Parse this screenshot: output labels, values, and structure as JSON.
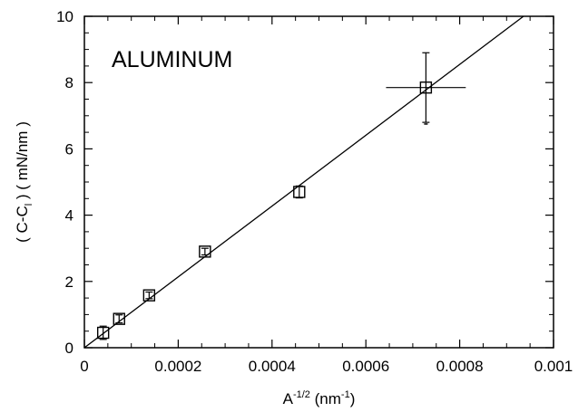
{
  "chart_data": {
    "type": "scatter",
    "title": "",
    "annotation": "ALUMINUM",
    "xlabel": {
      "base": "A",
      "sup": "-1/2",
      "unit_open": " (nm",
      "unit_sup": "-1",
      "unit_close": ")"
    },
    "ylabel": {
      "open": "( C-C",
      "sub": "l",
      "close": " )  ( mN/nm )"
    },
    "xlim": [
      0,
      0.001
    ],
    "ylim": [
      0,
      10
    ],
    "xticks": [
      "0",
      "0.0002",
      "0.0004",
      "0.0006",
      "0.0008",
      "0.001"
    ],
    "yticks": [
      "0",
      "2",
      "4",
      "6",
      "8",
      "10"
    ],
    "grid": false,
    "legend": "none",
    "series": [
      {
        "marker": "open-square",
        "points": [
          {
            "x": 4e-05,
            "y": 0.45,
            "yerr": 0.2
          },
          {
            "x": 7.4e-05,
            "y": 0.87,
            "yerr": 0.12
          },
          {
            "x": 0.000138,
            "y": 1.58,
            "yerr": 0.1
          },
          {
            "x": 0.000257,
            "y": 2.9,
            "yerr": 0.1
          },
          {
            "x": 0.000458,
            "y": 4.7,
            "yerr": 0.18
          },
          {
            "x": 0.000728,
            "y": 7.85,
            "yerr": 1.05,
            "xerr_minus": 8.5e-05,
            "xerr_plus": 8.5e-05
          }
        ]
      }
    ],
    "fit_line": {
      "x": [
        0,
        0.00095
      ],
      "y": [
        0,
        10.15
      ]
    },
    "stray_mark": {
      "x": 0.000728,
      "y": 6.75
    }
  }
}
